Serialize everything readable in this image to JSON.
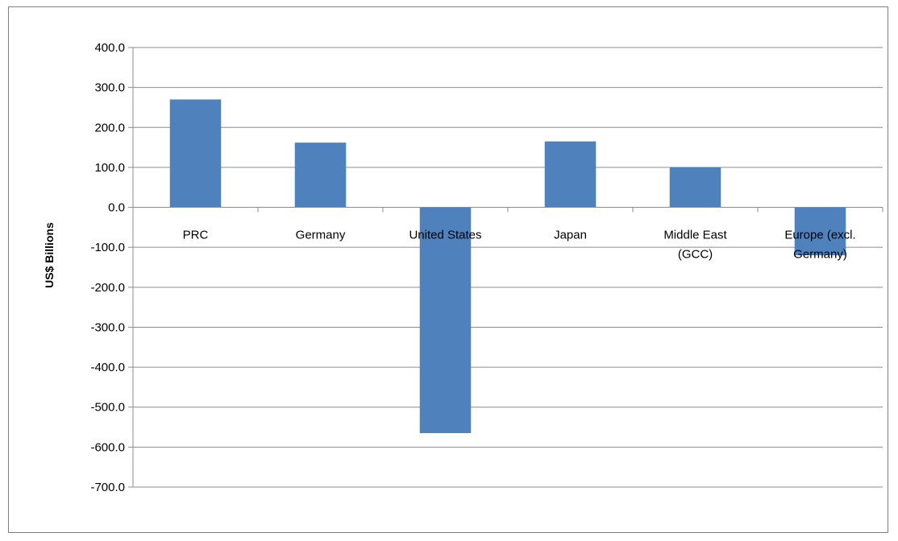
{
  "chart_data": {
    "type": "bar",
    "title": "",
    "xlabel": "",
    "ylabel": "US$ Billions",
    "categories": [
      [
        "PRC"
      ],
      [
        "Germany"
      ],
      [
        "United States"
      ],
      [
        "Japan"
      ],
      [
        "Middle East",
        "(GCC)"
      ],
      [
        "Europe (excl.",
        "Germany)"
      ]
    ],
    "values": [
      270,
      162,
      -565,
      165,
      100,
      -120
    ],
    "ylim": [
      -700,
      400
    ],
    "yticks": [
      400,
      300,
      200,
      100,
      0,
      -100,
      -200,
      -300,
      -400,
      -500,
      -600,
      -700
    ],
    "ytick_labels": [
      "400.0",
      "300.0",
      "200.0",
      "100.0",
      "0.0",
      "-100.0",
      "-200.0",
      "-300.0",
      "-400.0",
      "-500.0",
      "-600.0",
      "-700.0"
    ],
    "grid": true,
    "legend": "none",
    "bar_color": "#4f81bd",
    "grid_color": "#8c8c8c"
  }
}
